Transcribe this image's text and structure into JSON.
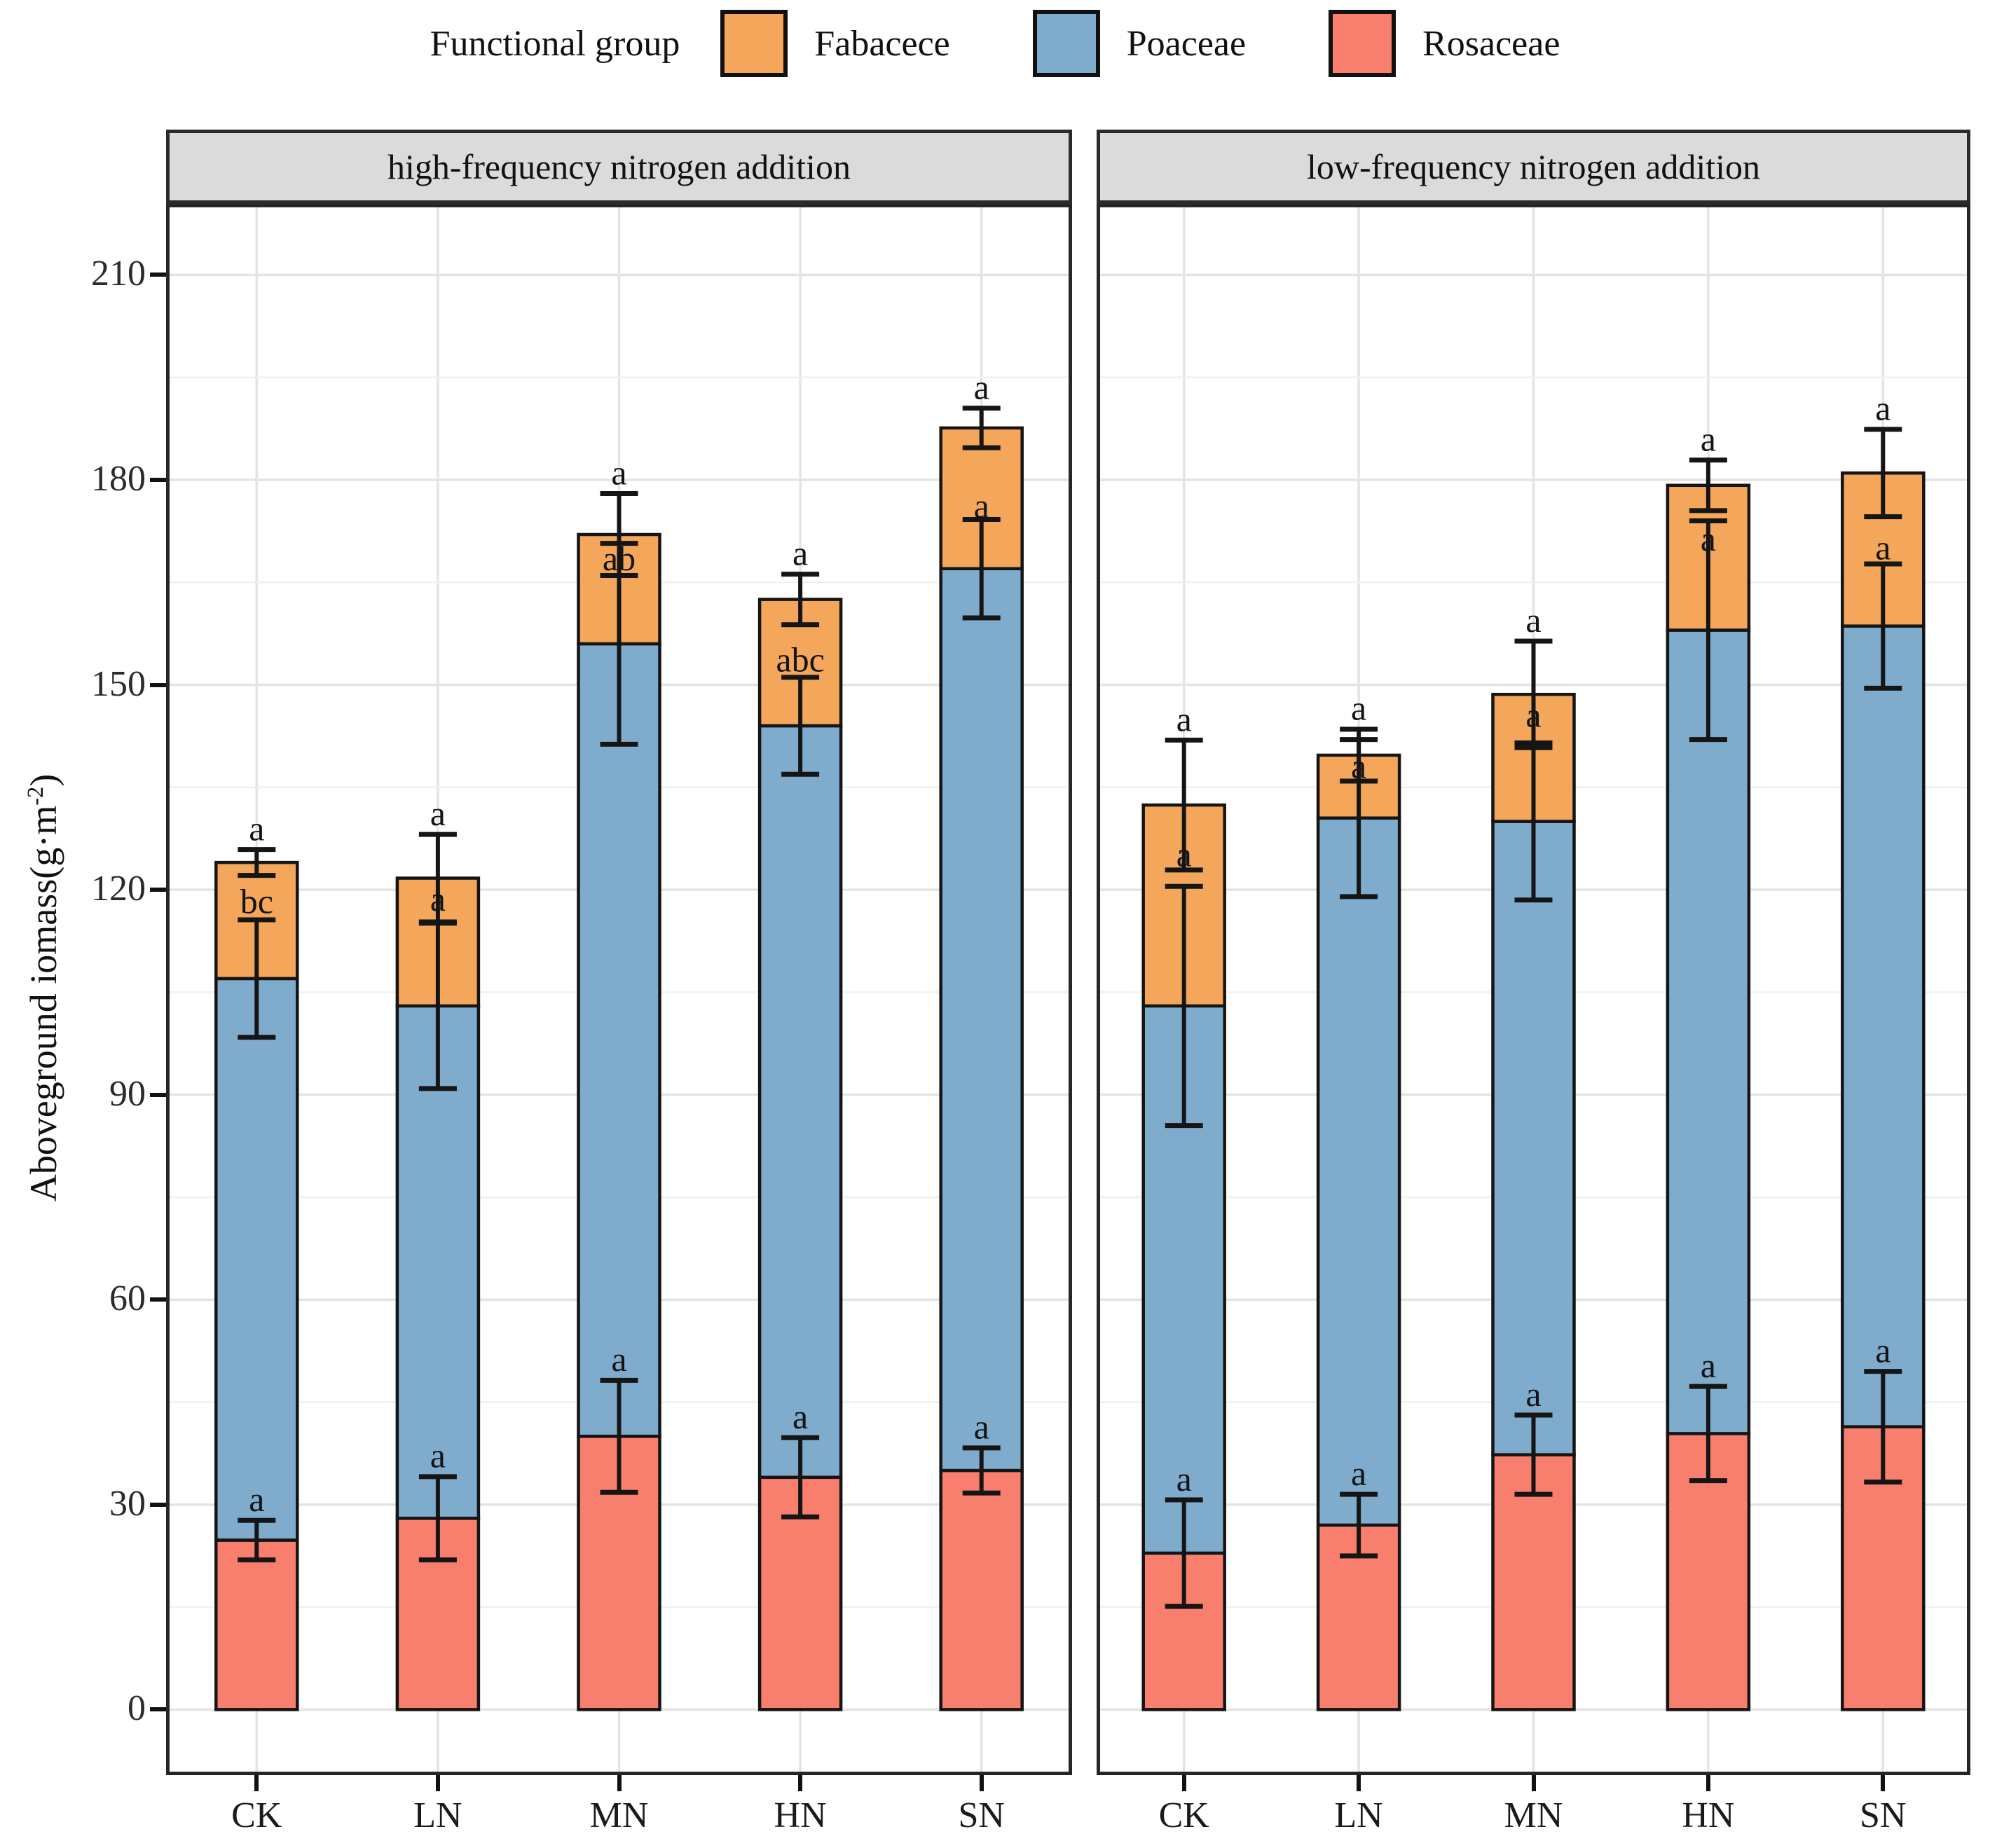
{
  "chart_data": {
    "type": "bar",
    "stacked": true,
    "ylabel_base": "Aboveground iomass(g·m",
    "ylabel_sup": "-2",
    "ylabel_close": ")",
    "ylim": [
      -9.6,
      220.4
    ],
    "yticks": [
      0,
      30,
      60,
      90,
      120,
      150,
      180,
      210
    ],
    "minor_step": 15,
    "grid": true,
    "legend_position": "top",
    "legend": {
      "title": "Functional group",
      "items": [
        {
          "label": "Fabacece",
          "color": "#F4A65A"
        },
        {
          "label": "Poaceae",
          "color": "#7FACCD"
        },
        {
          "label": "Rosaceae",
          "color": "#F87E6E"
        }
      ]
    },
    "colors": {
      "fabacece": "#F4A65A",
      "poaceae": "#7FACCD",
      "rosaceae": "#F87E6E",
      "strip_bg": "#DBDBDB",
      "grid_major": "#E4E4E4",
      "grid_minor": "#F0F0F0",
      "panel_border": "#262626",
      "bar_stroke": "#151515"
    },
    "categories": [
      "CK",
      "LN",
      "MN",
      "HN",
      "SN"
    ],
    "facets": [
      {
        "title": "high-frequency nitrogen addition",
        "bars": [
          {
            "cat": "CK",
            "rosaceae": {
              "v": 24.8,
              "err": 2.9,
              "letter": "a"
            },
            "poaceae": {
              "v": 82.2,
              "err": 8.6,
              "letter": "bc",
              "letter_at": 118.4
            },
            "fabacece": {
              "v": 17.0,
              "err": 1.9,
              "letter": "a"
            }
          },
          {
            "cat": "LN",
            "rosaceae": {
              "v": 28.0,
              "err": 6.1,
              "letter": "a"
            },
            "poaceae": {
              "v": 75.0,
              "err": 12.1,
              "letter": "a",
              "letter_at": 118.8
            },
            "fabacece": {
              "v": 18.7,
              "err": 6.4,
              "letter": "a"
            }
          },
          {
            "cat": "MN",
            "rosaceae": {
              "v": 40.0,
              "err": 8.2,
              "letter": "a"
            },
            "poaceae": {
              "v": 116.0,
              "err": 14.7,
              "letter": "ab",
              "letter_at": 168.6
            },
            "fabacece": {
              "v": 16.0,
              "err": 6.0,
              "letter": "a"
            }
          },
          {
            "cat": "HN",
            "rosaceae": {
              "v": 34.0,
              "err": 5.8,
              "letter": "a"
            },
            "poaceae": {
              "v": 110.0,
              "err": 7.1,
              "letter": "abc",
              "letter_at": 153.8
            },
            "fabacece": {
              "v": 18.5,
              "err": 3.7,
              "letter": "a"
            }
          },
          {
            "cat": "SN",
            "rosaceae": {
              "v": 35.0,
              "err": 3.3,
              "letter": "a"
            },
            "poaceae": {
              "v": 132.0,
              "err": 7.2,
              "letter": "a",
              "letter_at": 176.3
            },
            "fabacece": {
              "v": 20.6,
              "err": 2.9,
              "letter": "a"
            }
          }
        ]
      },
      {
        "title": "low-frequency nitrogen addition",
        "bars": [
          {
            "cat": "CK",
            "rosaceae": {
              "v": 22.9,
              "err": 7.8,
              "letter": "a"
            },
            "poaceae": {
              "v": 80.1,
              "err": 17.5,
              "letter": "a",
              "letter_at": 125.3
            },
            "fabacece": {
              "v": 29.4,
              "err": 9.5,
              "letter": "a"
            }
          },
          {
            "cat": "LN",
            "rosaceae": {
              "v": 27.0,
              "err": 4.5,
              "letter": "a"
            },
            "poaceae": {
              "v": 103.5,
              "err": 11.5,
              "letter": "a",
              "letter_at": 138.2
            },
            "fabacece": {
              "v": 9.2,
              "err": 3.8,
              "letter": "a"
            }
          },
          {
            "cat": "MN",
            "rosaceae": {
              "v": 37.3,
              "err": 5.8,
              "letter": "a"
            },
            "poaceae": {
              "v": 92.7,
              "err": 11.5,
              "letter": "a",
              "letter_at": 145.7
            },
            "fabacece": {
              "v": 18.6,
              "err": 7.8,
              "letter": "a"
            }
          },
          {
            "cat": "HN",
            "rosaceae": {
              "v": 40.4,
              "err": 6.9,
              "letter": "a"
            },
            "poaceae": {
              "v": 117.6,
              "err": 16.0,
              "letter": "a",
              "letter_at": 171.5
            },
            "fabacece": {
              "v": 21.2,
              "err": 3.7,
              "letter": "a"
            }
          },
          {
            "cat": "SN",
            "rosaceae": {
              "v": 41.4,
              "err": 8.1,
              "letter": "a"
            },
            "poaceae": {
              "v": 117.2,
              "err": 9.1,
              "letter": "a",
              "letter_at": 170.2
            },
            "fabacece": {
              "v": 22.4,
              "err": 6.4,
              "letter": "a"
            }
          }
        ]
      }
    ]
  }
}
